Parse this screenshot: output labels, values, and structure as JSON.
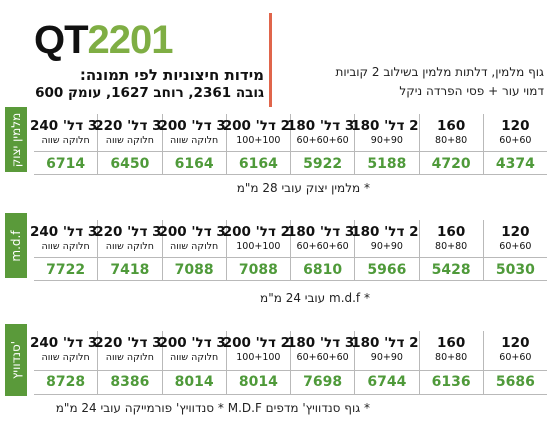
{
  "header": {
    "model": "QT",
    "number": "2201",
    "subtitle": "מידות חיצוניות לפי תמונה:",
    "dimensions": "גובה 2361, רוחב 1627, עומק 600",
    "description": [
      "גוף מלמין, דלתות מלמין בשילוב 2 קוביות",
      "דמוי עור + פסי הפרדה ניקל"
    ]
  },
  "sections": [
    {
      "label": "מלמין יצוק",
      "columns": [
        {
          "l1": "3 דל' 240",
          "l2": "חלוקה שווה",
          "price": "6714"
        },
        {
          "l1": "3 דל' 220",
          "l2": "חלוקה שווה",
          "price": "6450"
        },
        {
          "l1": "3 דל' 200",
          "l2": "חלוקה שווה",
          "price": "6164"
        },
        {
          "l1": "2 דל' 200",
          "l2": "100+100",
          "price": "6164"
        },
        {
          "l1": "3 דל' 180",
          "l2": "60+60+60",
          "price": "5922"
        },
        {
          "l1": "2 דל' 180",
          "l2": "90+90",
          "price": "5188"
        },
        {
          "l1": "160",
          "l2": "80+80",
          "price": "4720"
        },
        {
          "l1": "120",
          "l2": "60+60",
          "price": "4374"
        }
      ],
      "note": "* מלמין יצוק עובי 28 מ\"מ"
    },
    {
      "label": "m.d.f",
      "columns": [
        {
          "l1": "3 דל' 240",
          "l2": "חלוקה שווה",
          "price": "7722"
        },
        {
          "l1": "3 דל' 220",
          "l2": "חלוקה שווה",
          "price": "7418"
        },
        {
          "l1": "3 דל' 200",
          "l2": "חלוקה שווה",
          "price": "7088"
        },
        {
          "l1": "2 דל' 200",
          "l2": "100+100",
          "price": "7088"
        },
        {
          "l1": "3 דל' 180",
          "l2": "60+60+60",
          "price": "6810"
        },
        {
          "l1": "2 דל' 180",
          "l2": "90+90",
          "price": "5966"
        },
        {
          "l1": "160",
          "l2": "80+80",
          "price": "5428"
        },
        {
          "l1": "120",
          "l2": "60+60",
          "price": "5030"
        }
      ],
      "note": "* m.d.f עובי 24 מ\"מ"
    },
    {
      "label": "סנדוויץ'",
      "columns": [
        {
          "l1": "3 דל' 240",
          "l2": "חלוקה שווה",
          "price": "8728"
        },
        {
          "l1": "3 דל' 220",
          "l2": "חלוקה שווה",
          "price": "8386"
        },
        {
          "l1": "3 דל' 200",
          "l2": "חלוקה שווה",
          "price": "8014"
        },
        {
          "l1": "2 דל' 200",
          "l2": "100+100",
          "price": "8014"
        },
        {
          "l1": "3 דל' 180",
          "l2": "60+60+60",
          "price": "7698"
        },
        {
          "l1": "2 דל' 180",
          "l2": "90+90",
          "price": "6744"
        },
        {
          "l1": "160",
          "l2": "80+80",
          "price": "6136"
        },
        {
          "l1": "120",
          "l2": "60+60",
          "price": "5686"
        }
      ],
      "note": "* גוף סנדוויץ' מדפים M.D.F * סנדוויץ' פורמייקה עובי 24 מ\"מ"
    }
  ]
}
